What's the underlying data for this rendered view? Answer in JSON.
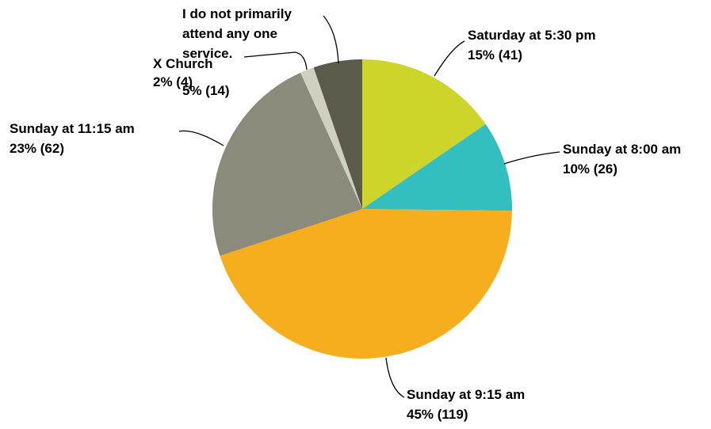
{
  "chart_data": {
    "type": "pie",
    "categories": [
      "Saturday at 5:30 pm",
      "Sunday at 8:00 am",
      "Sunday at 9:15 am",
      "Sunday at 11:15 am",
      "X Church",
      "I do not primarily attend any one service."
    ],
    "values": [
      41,
      26,
      119,
      62,
      4,
      14
    ],
    "value_labels": [
      "15% (41)",
      "10% (26)",
      "45% (119)",
      "23% (62)",
      "2% (4)",
      "5% (14)"
    ],
    "colors": [
      "#cdd42a",
      "#33bec0",
      "#f6ae1f",
      "#8a8b7a",
      "#d0d0c0",
      "#5c5a4a"
    ]
  }
}
